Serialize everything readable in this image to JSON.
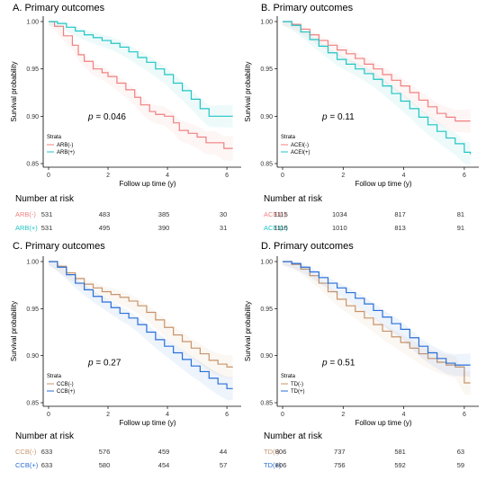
{
  "chart_data": [
    {
      "type": "line",
      "title": "A. Primary outcomes",
      "xlabel": "Follow up time (y)",
      "ylabel": "Survival probability",
      "xticks": [
        "0",
        "2",
        "4",
        "6"
      ],
      "yticks": [
        "0.85",
        "0.90",
        "0.95",
        "1.00"
      ],
      "xlim": [
        0,
        6.3
      ],
      "ylim": [
        0.85,
        1.0
      ],
      "grid": false,
      "p_value": "= 0.046",
      "legend_title": "Strata",
      "legend_position": "bottom-left",
      "series": [
        {
          "name": "ARB(-)",
          "color": "#f08080",
          "x": [
            0,
            0.2,
            0.5,
            0.8,
            1.0,
            1.2,
            1.5,
            1.8,
            2.0,
            2.3,
            2.6,
            2.9,
            3.1,
            3.4,
            3.6,
            3.9,
            4.2,
            4.4,
            4.7,
            5.0,
            5.3,
            5.6,
            5.9,
            6.2
          ],
          "y": [
            1.0,
            0.995,
            0.985,
            0.975,
            0.965,
            0.958,
            0.95,
            0.946,
            0.942,
            0.935,
            0.928,
            0.92,
            0.912,
            0.905,
            0.902,
            0.9,
            0.893,
            0.885,
            0.882,
            0.878,
            0.872,
            0.872,
            0.866,
            0.866
          ]
        },
        {
          "name": "ARB(+)",
          "color": "#20c5c5",
          "x": [
            0,
            0.3,
            0.6,
            0.9,
            1.2,
            1.5,
            1.8,
            2.1,
            2.4,
            2.7,
            3.0,
            3.3,
            3.6,
            3.9,
            4.2,
            4.5,
            4.8,
            5.1,
            5.4,
            5.7,
            6.2
          ],
          "y": [
            1.0,
            0.998,
            0.994,
            0.99,
            0.986,
            0.983,
            0.98,
            0.977,
            0.973,
            0.968,
            0.962,
            0.957,
            0.95,
            0.944,
            0.935,
            0.927,
            0.918,
            0.908,
            0.9,
            0.9,
            0.9
          ]
        }
      ],
      "risk_table": {
        "title": "Number at risk",
        "rows": [
          {
            "label": "ARB(-)",
            "color": "#f08080",
            "values": [
              "531",
              "483",
              "385",
              "30"
            ]
          },
          {
            "label": "ARB(+)",
            "color": "#20c5c5",
            "values": [
              "531",
              "495",
              "390",
              "31"
            ]
          }
        ]
      }
    },
    {
      "type": "line",
      "title": "B. Primary outcomes",
      "xlabel": "Follow up time (y)",
      "ylabel": "Survival probability",
      "xticks": [
        "0",
        "2",
        "4",
        "6"
      ],
      "yticks": [
        "0.85",
        "0.90",
        "0.95",
        "1.00"
      ],
      "xlim": [
        0,
        6.3
      ],
      "ylim": [
        0.85,
        1.0
      ],
      "grid": false,
      "p_value": "= 0.11",
      "legend_title": "Strata",
      "legend_position": "bottom-left",
      "series": [
        {
          "name": "ACEI(-)",
          "color": "#f08080",
          "x": [
            0,
            0.3,
            0.6,
            0.9,
            1.2,
            1.5,
            1.8,
            2.1,
            2.4,
            2.7,
            3.0,
            3.3,
            3.6,
            3.9,
            4.2,
            4.5,
            4.8,
            5.1,
            5.4,
            5.7,
            6.0,
            6.2
          ],
          "y": [
            1.0,
            0.997,
            0.992,
            0.986,
            0.98,
            0.975,
            0.97,
            0.966,
            0.961,
            0.955,
            0.95,
            0.944,
            0.938,
            0.932,
            0.925,
            0.917,
            0.91,
            0.903,
            0.899,
            0.895,
            0.895,
            0.895
          ]
        },
        {
          "name": "ACEI(+)",
          "color": "#20c5c5",
          "x": [
            0,
            0.3,
            0.6,
            0.9,
            1.2,
            1.5,
            1.8,
            2.1,
            2.4,
            2.7,
            3.0,
            3.3,
            3.6,
            3.9,
            4.2,
            4.5,
            4.8,
            5.1,
            5.4,
            5.7,
            6.0,
            6.2
          ],
          "y": [
            1.0,
            0.996,
            0.989,
            0.981,
            0.974,
            0.967,
            0.96,
            0.955,
            0.95,
            0.945,
            0.939,
            0.932,
            0.924,
            0.916,
            0.908,
            0.899,
            0.891,
            0.884,
            0.877,
            0.871,
            0.862,
            0.86
          ]
        }
      ],
      "risk_table": {
        "title": "Number at risk",
        "rows": [
          {
            "label": "ACEI(-)",
            "color": "#f08080",
            "values": [
              "1115",
              "1034",
              "817",
              "81"
            ]
          },
          {
            "label": "ACEI(+)",
            "color": "#20c5c5",
            "values": [
              "1115",
              "1010",
              "813",
              "91"
            ]
          }
        ]
      }
    },
    {
      "type": "line",
      "title": "C. Primary outcomes",
      "xlabel": "Follow up time (y)",
      "ylabel": "Survival probability",
      "xticks": [
        "0",
        "2",
        "4",
        "6"
      ],
      "yticks": [
        "0.85",
        "0.90",
        "0.95",
        "1.00"
      ],
      "xlim": [
        0,
        6.3
      ],
      "ylim": [
        0.85,
        1.0
      ],
      "grid": false,
      "p_value": "= 0.27",
      "legend_title": "Strata",
      "legend_position": "bottom-left",
      "series": [
        {
          "name": "CCB(-)",
          "color": "#c8946a",
          "x": [
            0,
            0.3,
            0.6,
            0.9,
            1.2,
            1.5,
            1.8,
            2.1,
            2.4,
            2.7,
            3.0,
            3.3,
            3.6,
            3.9,
            4.2,
            4.5,
            4.8,
            5.1,
            5.4,
            5.7,
            6.0,
            6.2
          ],
          "y": [
            1.0,
            0.995,
            0.988,
            0.982,
            0.976,
            0.972,
            0.968,
            0.965,
            0.962,
            0.958,
            0.953,
            0.946,
            0.938,
            0.93,
            0.922,
            0.915,
            0.908,
            0.902,
            0.895,
            0.891,
            0.888,
            0.888
          ]
        },
        {
          "name": "CCB(+)",
          "color": "#2a6fd6",
          "x": [
            0,
            0.3,
            0.6,
            0.9,
            1.2,
            1.5,
            1.8,
            2.1,
            2.4,
            2.7,
            3.0,
            3.3,
            3.6,
            3.9,
            4.2,
            4.5,
            4.8,
            5.1,
            5.4,
            5.7,
            6.0,
            6.2
          ],
          "y": [
            1.0,
            0.994,
            0.986,
            0.977,
            0.97,
            0.963,
            0.957,
            0.951,
            0.945,
            0.94,
            0.933,
            0.925,
            0.917,
            0.91,
            0.903,
            0.896,
            0.889,
            0.883,
            0.876,
            0.87,
            0.865,
            0.865
          ]
        }
      ],
      "risk_table": {
        "title": "Number at risk",
        "rows": [
          {
            "label": "CCB(-)",
            "color": "#c8946a",
            "values": [
              "633",
              "576",
              "459",
              "44"
            ]
          },
          {
            "label": "CCB(+)",
            "color": "#2a6fd6",
            "values": [
              "633",
              "580",
              "454",
              "57"
            ]
          }
        ]
      }
    },
    {
      "type": "line",
      "title": "D. Primary outcomes",
      "xlabel": "Follow up time (y)",
      "ylabel": "Survival probability",
      "xticks": [
        "0",
        "2",
        "4",
        "6"
      ],
      "yticks": [
        "0.85",
        "0.90",
        "0.95",
        "1.00"
      ],
      "xlim": [
        0,
        6.3
      ],
      "ylim": [
        0.85,
        1.0
      ],
      "grid": false,
      "p_value": "= 0.51",
      "legend_title": "Strata",
      "legend_position": "bottom-left",
      "series": [
        {
          "name": "TD(-)",
          "color": "#c8946a",
          "x": [
            0,
            0.3,
            0.6,
            0.9,
            1.2,
            1.5,
            1.8,
            2.1,
            2.4,
            2.7,
            3.0,
            3.3,
            3.6,
            3.9,
            4.2,
            4.5,
            4.8,
            5.1,
            5.4,
            5.7,
            6.0,
            6.2
          ],
          "y": [
            1.0,
            0.997,
            0.992,
            0.985,
            0.977,
            0.968,
            0.96,
            0.953,
            0.947,
            0.94,
            0.933,
            0.926,
            0.92,
            0.914,
            0.908,
            0.902,
            0.897,
            0.893,
            0.89,
            0.888,
            0.871,
            0.871
          ]
        },
        {
          "name": "TD(+)",
          "color": "#2a6fd6",
          "x": [
            0,
            0.3,
            0.6,
            0.9,
            1.2,
            1.5,
            1.8,
            2.1,
            2.4,
            2.7,
            3.0,
            3.3,
            3.6,
            3.9,
            4.2,
            4.5,
            4.8,
            5.1,
            5.4,
            5.7,
            6.0,
            6.2
          ],
          "y": [
            1.0,
            0.998,
            0.994,
            0.989,
            0.983,
            0.977,
            0.972,
            0.967,
            0.961,
            0.955,
            0.948,
            0.941,
            0.934,
            0.928,
            0.919,
            0.91,
            0.903,
            0.897,
            0.892,
            0.89,
            0.89,
            0.89
          ]
        }
      ],
      "risk_table": {
        "title": "Number at risk",
        "rows": [
          {
            "label": "TD(-)",
            "color": "#c8946a",
            "values": [
              "806",
              "737",
              "581",
              "63"
            ]
          },
          {
            "label": "TD(+)",
            "color": "#2a6fd6",
            "values": [
              "806",
              "756",
              "592",
              "59"
            ]
          }
        ]
      }
    }
  ]
}
